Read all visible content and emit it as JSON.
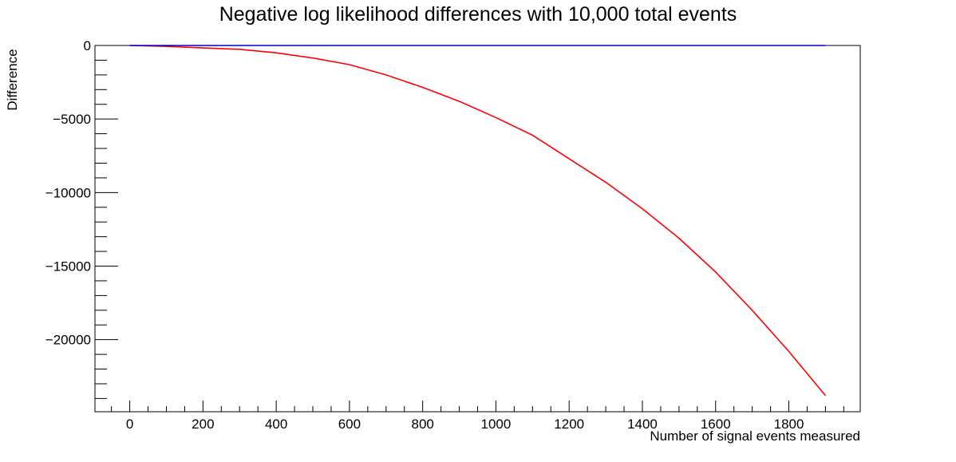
{
  "chart_data": {
    "type": "line",
    "title": "Negative log likelihood differences with 10,000 total events",
    "xlabel": "Number of signal events measured",
    "ylabel": "Difference",
    "xlim": [
      -95,
      1995
    ],
    "ylim": [
      -24900,
      0
    ],
    "xticks": [
      0,
      200,
      400,
      600,
      800,
      1000,
      1200,
      1400,
      1600,
      1800
    ],
    "xtick_labels": [
      "0",
      "200",
      "400",
      "600",
      "800",
      "1000",
      "1200",
      "1400",
      "1600",
      "1800"
    ],
    "yticks": [
      0,
      -5000,
      -10000,
      -15000,
      -20000
    ],
    "ytick_labels": [
      "0",
      "−5000",
      "−10000",
      "−15000",
      "−20000"
    ],
    "grid": false,
    "legend": "none",
    "series": [
      {
        "color": "#ff0000",
        "x": [
          0,
          100,
          200,
          300,
          400,
          500,
          600,
          700,
          800,
          900,
          1000,
          1100,
          1200,
          1300,
          1400,
          1500,
          1600,
          1700,
          1800,
          1900
        ],
        "y": [
          0,
          -60,
          -170,
          -260,
          -500,
          -850,
          -1300,
          -2000,
          -2850,
          -3800,
          -4900,
          -6100,
          -7700,
          -9300,
          -11100,
          -13100,
          -15400,
          -18000,
          -20800,
          -23800
        ]
      },
      {
        "color": "#0000cc",
        "x": [
          0,
          1900
        ],
        "y": [
          0,
          0
        ]
      }
    ]
  }
}
